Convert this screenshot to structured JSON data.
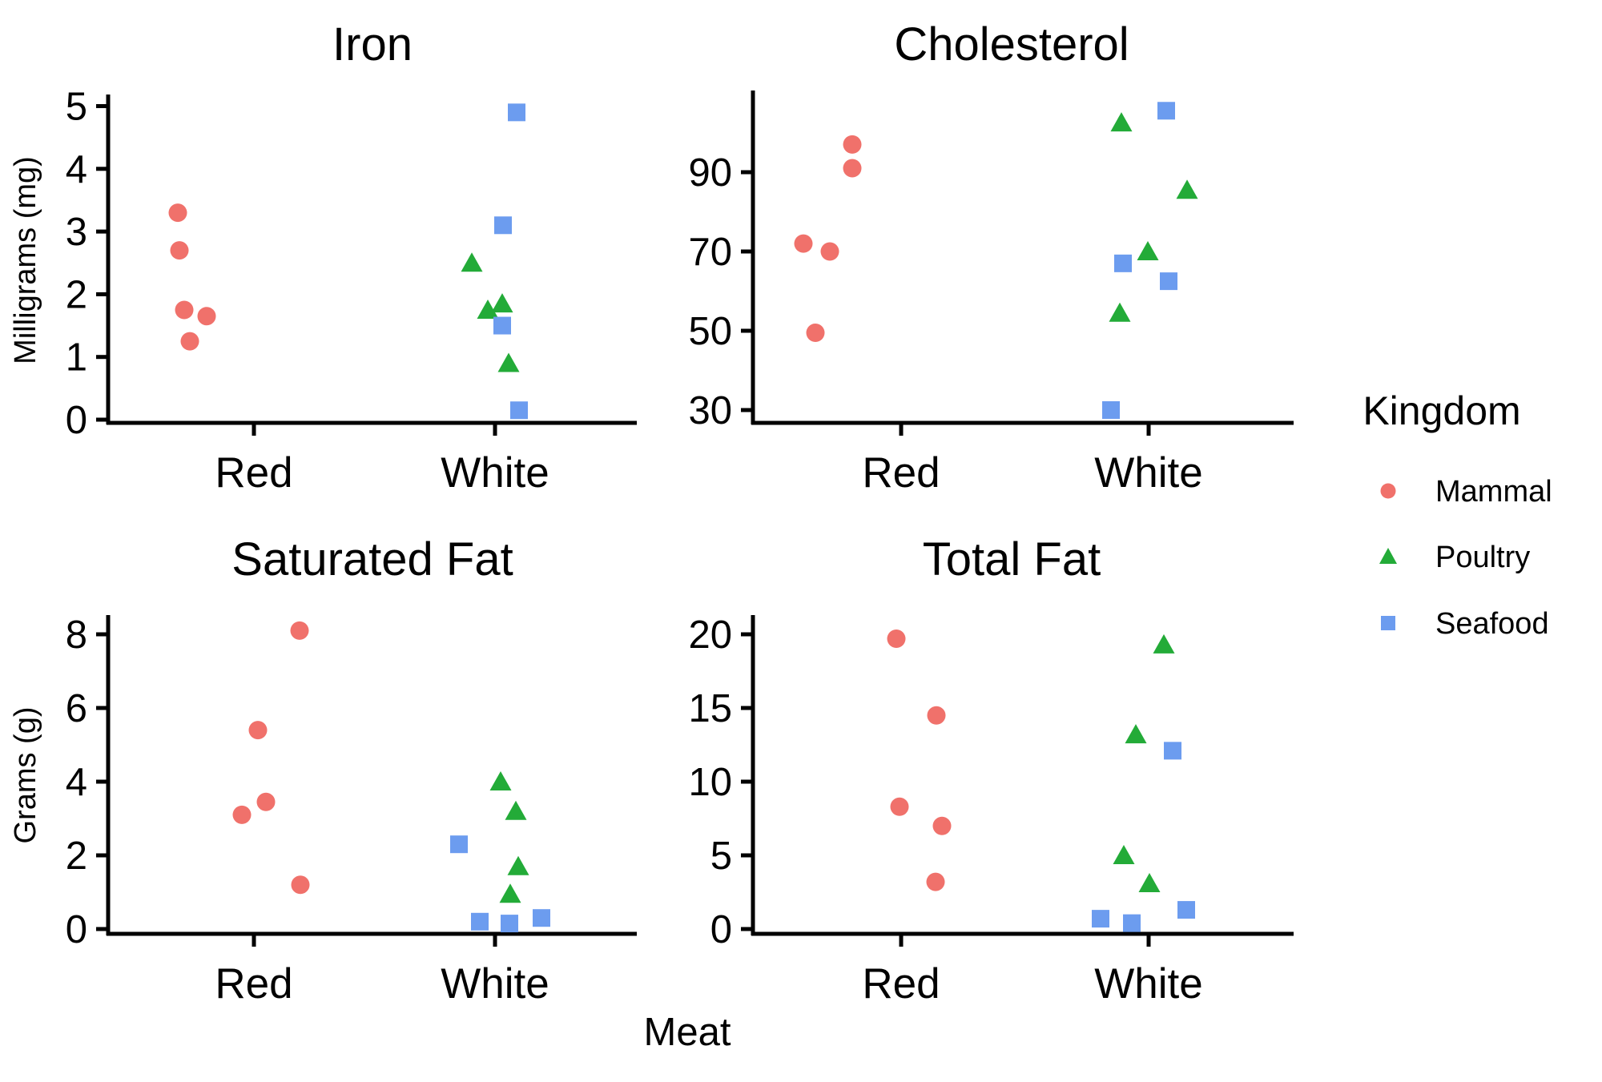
{
  "figure": {
    "xlabel": "Meat",
    "background": "#ffffff"
  },
  "legend": {
    "title": "Kingdom",
    "items": [
      {
        "label": "Mammal",
        "marker": "circle",
        "color": "#F0716B"
      },
      {
        "label": "Poultry",
        "marker": "triangle",
        "color": "#23AB38"
      },
      {
        "label": "Seafood",
        "marker": "square",
        "color": "#6C9CEF"
      }
    ]
  },
  "chart_data": [
    {
      "type": "scatter",
      "title": "Iron",
      "ylabel": "Milligrams (mg)",
      "xlabel": "Meat",
      "categories": [
        "Red",
        "White"
      ],
      "yticks": [
        0,
        1,
        2,
        3,
        4,
        5
      ],
      "ylim": [
        0,
        5.2
      ],
      "legend_position": "right-of-figure",
      "grid": false,
      "series": [
        {
          "name": "Mammal",
          "marker": "circle",
          "color": "#F0716B",
          "points": [
            {
              "x": "Red",
              "y": 3.3,
              "jitter": -95
            },
            {
              "x": "Red",
              "y": 2.7,
              "jitter": -93
            },
            {
              "x": "Red",
              "y": 1.75,
              "jitter": -87
            },
            {
              "x": "Red",
              "y": 1.65,
              "jitter": -59
            },
            {
              "x": "Red",
              "y": 1.25,
              "jitter": -80
            }
          ]
        },
        {
          "name": "Poultry",
          "marker": "triangle",
          "color": "#23AB38",
          "points": [
            {
              "x": "White",
              "y": 2.5,
              "jitter": -29
            },
            {
              "x": "White",
              "y": 1.85,
              "jitter": 9
            },
            {
              "x": "White",
              "y": 1.75,
              "jitter": -9
            },
            {
              "x": "White",
              "y": 0.9,
              "jitter": 17
            }
          ]
        },
        {
          "name": "Seafood",
          "marker": "square",
          "color": "#6C9CEF",
          "points": [
            {
              "x": "White",
              "y": 4.9,
              "jitter": 27
            },
            {
              "x": "White",
              "y": 3.1,
              "jitter": 10
            },
            {
              "x": "White",
              "y": 1.5,
              "jitter": 9
            },
            {
              "x": "White",
              "y": 0.15,
              "jitter": 30
            }
          ]
        }
      ]
    },
    {
      "type": "scatter",
      "title": "Cholesterol",
      "ylabel": "Milligrams (mg)",
      "xlabel": "Meat",
      "categories": [
        "Red",
        "White"
      ],
      "yticks": [
        30,
        50,
        70,
        90
      ],
      "ylim": [
        26,
        110
      ],
      "grid": false,
      "series": [
        {
          "name": "Mammal",
          "marker": "circle",
          "color": "#F0716B",
          "points": [
            {
              "x": "Red",
              "y": 97,
              "jitter": -61
            },
            {
              "x": "Red",
              "y": 91,
              "jitter": -61
            },
            {
              "x": "Red",
              "y": 72,
              "jitter": -122
            },
            {
              "x": "Red",
              "y": 70,
              "jitter": -89
            },
            {
              "x": "Red",
              "y": 49.5,
              "jitter": -107
            }
          ]
        },
        {
          "name": "Poultry",
          "marker": "triangle",
          "color": "#23AB38",
          "points": [
            {
              "x": "White",
              "y": 102.5,
              "jitter": -34
            },
            {
              "x": "White",
              "y": 85.5,
              "jitter": 48
            },
            {
              "x": "White",
              "y": 70,
              "jitter": -1
            },
            {
              "x": "White",
              "y": 54.5,
              "jitter": -36
            }
          ]
        },
        {
          "name": "Seafood",
          "marker": "square",
          "color": "#6C9CEF",
          "points": [
            {
              "x": "White",
              "y": 105.5,
              "jitter": 22
            },
            {
              "x": "White",
              "y": 67,
              "jitter": -32
            },
            {
              "x": "White",
              "y": 62.5,
              "jitter": 25
            },
            {
              "x": "White",
              "y": 30,
              "jitter": -47
            }
          ]
        }
      ]
    },
    {
      "type": "scatter",
      "title": "Saturated Fat",
      "ylabel": "Grams (g)",
      "xlabel": "Meat",
      "categories": [
        "Red",
        "White"
      ],
      "yticks": [
        0,
        2,
        4,
        6,
        8
      ],
      "ylim": [
        0,
        8.6
      ],
      "grid": false,
      "series": [
        {
          "name": "Mammal",
          "marker": "circle",
          "color": "#F0716B",
          "points": [
            {
              "x": "Red",
              "y": 8.1,
              "jitter": 57
            },
            {
              "x": "Red",
              "y": 5.4,
              "jitter": 5
            },
            {
              "x": "Red",
              "y": 3.45,
              "jitter": 15
            },
            {
              "x": "Red",
              "y": 3.1,
              "jitter": -15
            },
            {
              "x": "Red",
              "y": 1.2,
              "jitter": 58
            }
          ]
        },
        {
          "name": "Poultry",
          "marker": "triangle",
          "color": "#23AB38",
          "points": [
            {
              "x": "White",
              "y": 4.0,
              "jitter": 7
            },
            {
              "x": "White",
              "y": 3.2,
              "jitter": 26
            },
            {
              "x": "White",
              "y": 1.7,
              "jitter": 29
            },
            {
              "x": "White",
              "y": 0.95,
              "jitter": 19
            }
          ]
        },
        {
          "name": "Seafood",
          "marker": "square",
          "color": "#6C9CEF",
          "points": [
            {
              "x": "White",
              "y": 2.3,
              "jitter": -45
            },
            {
              "x": "White",
              "y": 0.2,
              "jitter": -19
            },
            {
              "x": "White",
              "y": 0.15,
              "jitter": 18
            },
            {
              "x": "White",
              "y": 0.3,
              "jitter": 58
            }
          ]
        }
      ]
    },
    {
      "type": "scatter",
      "title": "Total Fat",
      "ylabel": "Grams (g)",
      "xlabel": "Meat",
      "categories": [
        "Red",
        "White"
      ],
      "yticks": [
        0,
        5,
        10,
        15,
        20
      ],
      "ylim": [
        0,
        21
      ],
      "grid": false,
      "series": [
        {
          "name": "Mammal",
          "marker": "circle",
          "color": "#F0716B",
          "points": [
            {
              "x": "Red",
              "y": 19.7,
              "jitter": -6
            },
            {
              "x": "Red",
              "y": 14.5,
              "jitter": 44
            },
            {
              "x": "Red",
              "y": 8.3,
              "jitter": -2
            },
            {
              "x": "Red",
              "y": 7.0,
              "jitter": 51
            },
            {
              "x": "Red",
              "y": 3.2,
              "jitter": 43
            }
          ]
        },
        {
          "name": "Poultry",
          "marker": "triangle",
          "color": "#23AB38",
          "points": [
            {
              "x": "White",
              "y": 19.3,
              "jitter": 19
            },
            {
              "x": "White",
              "y": 13.2,
              "jitter": -16
            },
            {
              "x": "White",
              "y": 5.0,
              "jitter": -31
            },
            {
              "x": "White",
              "y": 3.1,
              "jitter": 1
            }
          ]
        },
        {
          "name": "Seafood",
          "marker": "square",
          "color": "#6C9CEF",
          "points": [
            {
              "x": "White",
              "y": 12.1,
              "jitter": 30
            },
            {
              "x": "White",
              "y": 0.7,
              "jitter": -60
            },
            {
              "x": "White",
              "y": 0.4,
              "jitter": -21
            },
            {
              "x": "White",
              "y": 1.3,
              "jitter": 47
            }
          ]
        }
      ]
    }
  ]
}
